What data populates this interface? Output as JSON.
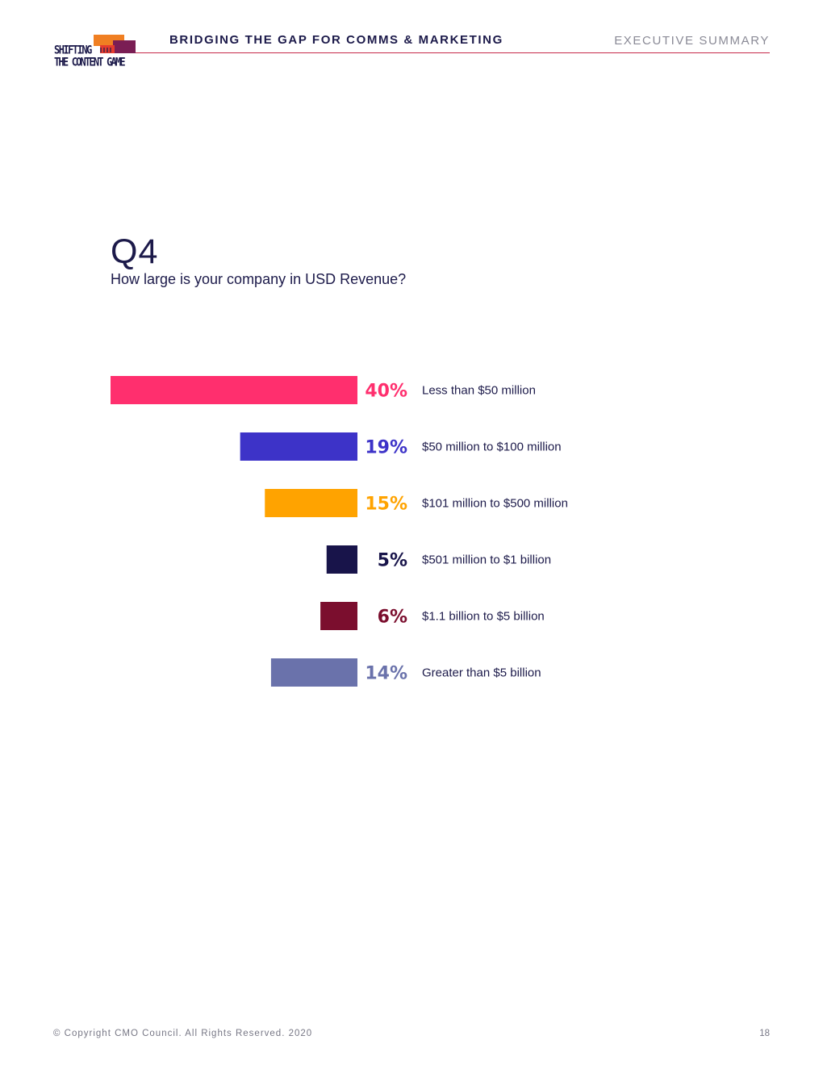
{
  "logo": {
    "line1": "SHIFTING",
    "line2": "THE CONTENT GAME"
  },
  "header": {
    "title": "BRIDGING THE GAP FOR COMMS & MARKETING",
    "section": "EXECUTIVE SUMMARY"
  },
  "question": {
    "number": "Q4",
    "text": "How large is your company in USD Revenue?"
  },
  "chart_data": {
    "type": "bar",
    "orientation": "horizontal",
    "categories": [
      "Less than $50 million",
      "$50 million to $100 million",
      "$101 million to $500 million",
      "$501 million to $1 billion",
      "$1.1 billion to $5 billion",
      "Greater than $5 billion"
    ],
    "values": [
      40,
      19,
      15,
      5,
      6,
      14
    ],
    "value_labels": [
      "40%",
      "19%",
      "15%",
      "5%",
      "6%",
      "14%"
    ],
    "unit": "%",
    "colors": [
      "#ff2f6e",
      "#3d33c8",
      "#ffa300",
      "#18144a",
      "#7b0e2e",
      "#6a72ab"
    ],
    "grid": false
  },
  "footer": {
    "copyright": "© Copyright CMO Council. All Rights Reserved. 2020",
    "page": "18"
  }
}
